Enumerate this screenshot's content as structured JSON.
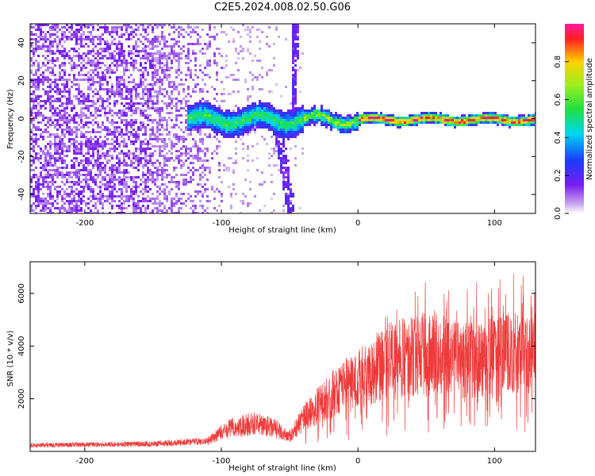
{
  "title": "C2E5.2024.008.02.50.G06",
  "chart_data": [
    {
      "type": "heatmap",
      "xlabel": "Height of straight line (km)",
      "ylabel": "Frequency (Hz)",
      "xlim": [
        -240,
        130
      ],
      "ylim": [
        -50,
        50
      ],
      "xticks": [
        -200,
        -100,
        0,
        100
      ],
      "yticks": [
        -40,
        -20,
        0,
        20,
        40
      ],
      "colorbar": {
        "label": "Normalized spectral amplitude",
        "range": [
          0,
          1
        ],
        "ticks": [
          "0.0",
          "0.2",
          "0.4",
          "0.6",
          "0.8"
        ],
        "colormap": "rainbow (white, violet, blue, cyan, green, yellow, red, pink)"
      },
      "features": [
        {
          "name": "carrier",
          "x_range": [
            -120,
            130
          ],
          "y": 0,
          "amplitude": "high, red beyond 0 km"
        },
        {
          "name": "diagonal trace",
          "x_range": [
            -65,
            -50
          ],
          "y_range": [
            -50,
            0
          ]
        },
        {
          "name": "vertical trace",
          "x_range": [
            -50,
            -45
          ],
          "y_range": [
            0,
            50
          ]
        },
        {
          "name": "noise",
          "x_range": [
            -240,
            -100
          ],
          "y_range": [
            -50,
            50
          ]
        }
      ]
    },
    {
      "type": "line",
      "xlabel": "Height of straight line (km)",
      "ylabel": "SNR (10 * v/v)",
      "xlim": [
        -240,
        130
      ],
      "ylim": [
        0,
        7200
      ],
      "xticks": [
        -200,
        -100,
        0,
        100
      ],
      "yticks": [
        2000,
        4000,
        6000
      ],
      "series_color": "#ef3a3a",
      "envelope": [
        {
          "x": -240,
          "y": 250
        },
        {
          "x": -150,
          "y": 300
        },
        {
          "x": -110,
          "y": 420
        },
        {
          "x": -95,
          "y": 900
        },
        {
          "x": -75,
          "y": 1150
        },
        {
          "x": -60,
          "y": 900
        },
        {
          "x": -50,
          "y": 600
        },
        {
          "x": -40,
          "y": 1300
        },
        {
          "x": -25,
          "y": 2000
        },
        {
          "x": -10,
          "y": 2700
        },
        {
          "x": 5,
          "y": 3000
        },
        {
          "x": 20,
          "y": 3600
        },
        {
          "x": 40,
          "y": 3800
        },
        {
          "x": 60,
          "y": 3900
        },
        {
          "x": 80,
          "y": 3600
        },
        {
          "x": 100,
          "y": 3900
        },
        {
          "x": 130,
          "y": 3900
        }
      ]
    }
  ]
}
